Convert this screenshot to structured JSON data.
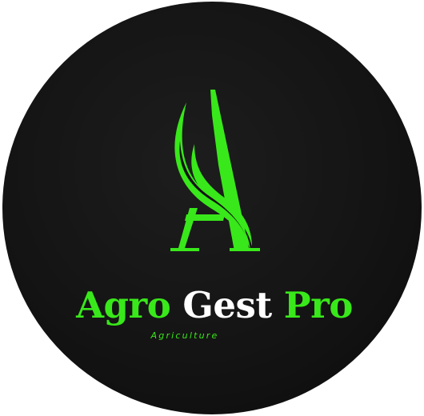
{
  "logo": {
    "brand": {
      "word1": "Agro",
      "word2": "Gest",
      "word3": "Pro"
    },
    "tagline": "Agriculture",
    "mark_icon": "letter-a-leaf-icon"
  },
  "colors": {
    "background": "#141414",
    "accent": "#39e81a",
    "text_light": "#ffffff"
  }
}
